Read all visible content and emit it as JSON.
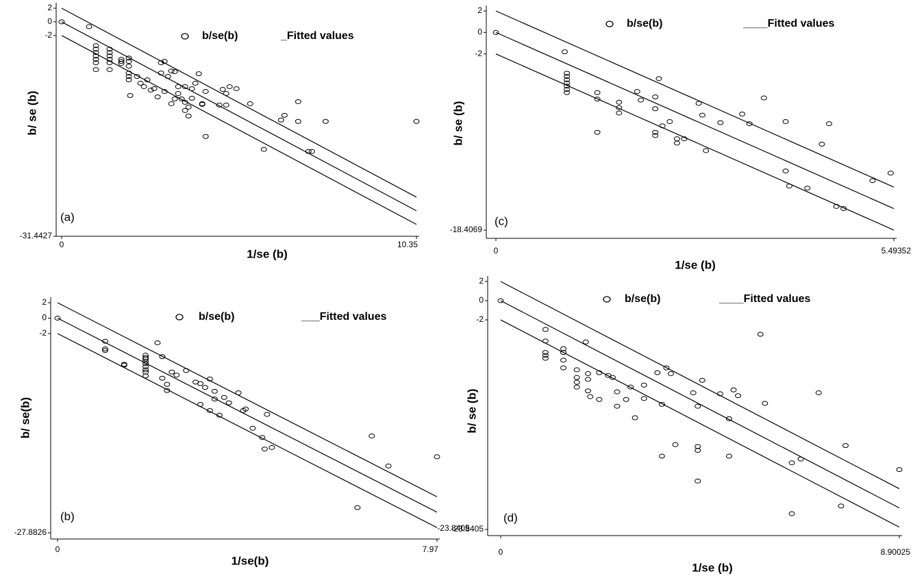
{
  "chart_data": [
    {
      "type": "scatter",
      "label": "(a)",
      "xlabel": "1/se (b)",
      "ylabel": "b/ se (b)",
      "xlim": [
        0,
        10.35
      ],
      "ylim": [
        -31.4427,
        2
      ],
      "xticks": [
        0,
        10.35
      ],
      "yticks": [
        2,
        0,
        -2,
        -31.4427
      ],
      "grid": false,
      "series": [
        {
          "name": "b/se(b)",
          "color": "#000000",
          "x": [
            0,
            0.8,
            1,
            1,
            1,
            1,
            1,
            1,
            1,
            1.4,
            1.4,
            1.4,
            1.4,
            1.4,
            1.4,
            1.74,
            1.74,
            1.74,
            1.96,
            1.96,
            1.96,
            1.96,
            1.96,
            2,
            1.96,
            2.2,
            2.3,
            2.4,
            2.5,
            2.6,
            2.7,
            2.8,
            2.9,
            3,
            2.9,
            3,
            3.1,
            3.2,
            3.3,
            3.4,
            3.4,
            3.5,
            3.6,
            3.3,
            3.2,
            3.6,
            3.7,
            3.7,
            3.8,
            3.9,
            3.8,
            3.6,
            4.1,
            4,
            4.1,
            4.2,
            4.2,
            4.6,
            4.7,
            4.8,
            4.9,
            4.8,
            5.1,
            5.5,
            5.9,
            6.4,
            6.5,
            6.9,
            6.9,
            7.2,
            7.3,
            7.7,
            10.35
          ],
          "values": [
            0,
            -0.7,
            -3.5,
            -4,
            -4.5,
            -5,
            -5.5,
            -6,
            -7,
            -4,
            -4.5,
            -5,
            -5.5,
            -6,
            -7,
            -5.5,
            -5.8,
            -6.1,
            -5.3,
            -5.8,
            -6.5,
            -7.5,
            -8,
            -10.8,
            -8.5,
            -8,
            -9,
            -9.5,
            -8.5,
            -10,
            -9.8,
            -11,
            -6,
            -5.8,
            -7.5,
            -10.2,
            -8,
            -7.2,
            -7.3,
            -10.5,
            -9.5,
            -11.3,
            -9.5,
            -11.3,
            -12,
            -13,
            -13.8,
            -12.5,
            -11.2,
            -9,
            -9.8,
            -11.8,
            -12,
            -7.6,
            -12.1,
            -10.2,
            -16.8,
            -12.2,
            -9.9,
            -10.5,
            -9.5,
            -12.2,
            -9.8,
            -12,
            -18.7,
            -14.4,
            -13.7,
            -14.6,
            -11.7,
            -19,
            -19,
            -14.6,
            -14.6
          ]
        },
        {
          "name": "_Fitted values",
          "color": "#000000",
          "x": [
            0,
            10.35
          ],
          "lines": [
            [
              2,
              -25.7
            ],
            [
              0,
              -27.7
            ],
            [
              -2,
              -29.7
            ]
          ]
        }
      ]
    },
    {
      "type": "scatter",
      "label": "(b)",
      "xlabel": "1/se(b)",
      "ylabel": "b/ se(b)",
      "annotation": "-23.8405",
      "xlim": [
        0,
        7.97
      ],
      "ylim": [
        -27.8826,
        2
      ],
      "xticks": [
        0,
        7.97
      ],
      "yticks": [
        2,
        0,
        -2,
        -27.8826
      ],
      "grid": false,
      "series": [
        {
          "name": "b/se(b)",
          "color": "#000000",
          "x": [
            0,
            1,
            1,
            1,
            1.4,
            1.4,
            1.85,
            1.85,
            1.85,
            1.85,
            1.85,
            1.85,
            1.85,
            1.85,
            1.85,
            2.1,
            2.2,
            2.2,
            2.3,
            2.3,
            2.5,
            2.4,
            2.7,
            2.9,
            3,
            3,
            3.1,
            3.2,
            3.2,
            3.3,
            3.3,
            3.4,
            3.5,
            3.6,
            3.8,
            3.9,
            3.95,
            4.1,
            4.3,
            4.4,
            4.35,
            4.5,
            6.3,
            6.6,
            6.95,
            7.97
          ],
          "values": [
            0,
            -3,
            -4,
            -4.2,
            -6,
            -6.1,
            -5.9,
            -6.3,
            -6.7,
            -7,
            -7.5,
            -5.6,
            -5.3,
            -5.1,
            -4.8,
            -3.2,
            -5,
            -7.8,
            -8.6,
            -9.4,
            -7.4,
            -7,
            -6.8,
            -8.3,
            -8.5,
            -11.2,
            -9,
            -12,
            -7.9,
            -9.5,
            -10.5,
            -12.6,
            -10.3,
            -11,
            -9.7,
            -12,
            -11.8,
            -14.3,
            -15.5,
            -12.5,
            -17,
            -16.8,
            -24.6,
            -15.3,
            -19.2,
            -18
          ]
        },
        {
          "name": "___Fitted values",
          "color": "#000000",
          "x": [
            0,
            7.97
          ],
          "lines": [
            [
              2,
              -23.2
            ],
            [
              0,
              -25.2
            ],
            [
              -2,
              -27.2
            ]
          ]
        }
      ]
    },
    {
      "type": "scatter",
      "label": "(c)",
      "xlabel": "1/se (b)",
      "ylabel": "b/ se (b)",
      "xlim": [
        0,
        5.49352
      ],
      "ylim": [
        -18.4069,
        2
      ],
      "xticks": [
        0,
        5.49352
      ],
      "yticks": [
        2,
        0,
        -2,
        -18.4069
      ],
      "grid": false,
      "series": [
        {
          "name": "b/se(b)",
          "color": "#000000",
          "x": [
            0,
            0.95,
            0.98,
            0.98,
            0.98,
            0.98,
            0.98,
            0.98,
            0.98,
            1.4,
            1.4,
            1.4,
            1.7,
            1.7,
            1.7,
            1.95,
            2,
            2.2,
            2.2,
            2.25,
            2.2,
            2.2,
            2.3,
            2.4,
            2.5,
            2.5,
            2.6,
            2.8,
            2.85,
            2.9,
            3.1,
            3.4,
            3.5,
            3.7,
            4,
            4,
            4.05,
            4.3,
            4.5,
            4.6,
            4.7,
            4.8,
            5.2,
            5.45
          ],
          "values": [
            0,
            -1.8,
            -3.8,
            -4.1,
            -4.4,
            -4.7,
            -5,
            -5.3,
            -5.6,
            -5.6,
            -6.2,
            -9.3,
            -6.5,
            -7,
            -7.5,
            -5.5,
            -6.3,
            -6,
            -7.1,
            -4.3,
            -9.3,
            -9.6,
            -8.7,
            -8.3,
            -9.9,
            -10.3,
            -9.9,
            -6.6,
            -7.7,
            -11,
            -8.4,
            -7.6,
            -8.5,
            -6.1,
            -8.3,
            -12.9,
            -14.3,
            -14.5,
            -10.4,
            -8.5,
            -16.2,
            -16.4,
            -13.8,
            -13.1
          ]
        },
        {
          "name": "____Fitted values",
          "color": "#000000",
          "x": [
            0,
            5.49352
          ],
          "lines": [
            [
              2,
              -14.4
            ],
            [
              0,
              -16.4
            ],
            [
              -2,
              -18.4
            ]
          ]
        }
      ]
    },
    {
      "type": "scatter",
      "label": "(d)",
      "xlabel": "1/se (b)",
      "ylabel": "b/ se (b)",
      "xlim": [
        0,
        8.90025
      ],
      "ylim": [
        -23.8405,
        2
      ],
      "xticks": [
        0,
        8.90025
      ],
      "yticks": [
        2,
        0,
        -2,
        -23.8405
      ],
      "grid": false,
      "series": [
        {
          "name": "b/se(b)",
          "color": "#000000",
          "x": [
            0,
            1,
            1,
            1,
            1,
            1,
            1.4,
            1.4,
            1.4,
            1.4,
            1.7,
            1.9,
            1.7,
            1.7,
            1.7,
            1.95,
            1.95,
            1.95,
            2,
            2.2,
            2.2,
            2.4,
            2.5,
            2.6,
            2.6,
            2.8,
            2.9,
            3,
            3.2,
            3.2,
            3.5,
            3.6,
            3.6,
            3.7,
            3.8,
            3.9,
            4.3,
            4.4,
            4.4,
            4.4,
            4.4,
            4.5,
            4.9,
            5.1,
            5.1,
            5.2,
            5.3,
            5.8,
            5.9,
            6.5,
            6.5,
            6.7,
            7.1,
            7.6,
            7.7,
            8.9
          ],
          "values": [
            0,
            -3,
            -4.2,
            -5.4,
            -5.7,
            -6,
            -5,
            -5.4,
            -6.2,
            -7,
            -7.2,
            -4.3,
            -8,
            -8.5,
            -9,
            -7.6,
            -8.2,
            -9.4,
            -10,
            -7.5,
            -10.3,
            -7.8,
            -8,
            -9.5,
            -11,
            -10.3,
            -9,
            -12.2,
            -8.8,
            -10.2,
            -7.5,
            -10.8,
            -16.2,
            -7,
            -7.6,
            -15,
            -9.6,
            -11,
            -18.8,
            -15.2,
            -15.6,
            -8.3,
            -9.7,
            -12.3,
            -16.2,
            -9.3,
            -9.9,
            -3.5,
            -10.7,
            -16.9,
            -22.2,
            -16.5,
            -9.6,
            -21.4,
            -15.1,
            -17.6
          ]
        },
        {
          "name": "____Fitted values",
          "color": "#000000",
          "x": [
            0,
            8.90025
          ],
          "lines": [
            [
              2,
              -19.6
            ],
            [
              0,
              -21.6
            ],
            [
              -2,
              -23.6
            ]
          ]
        }
      ]
    }
  ]
}
